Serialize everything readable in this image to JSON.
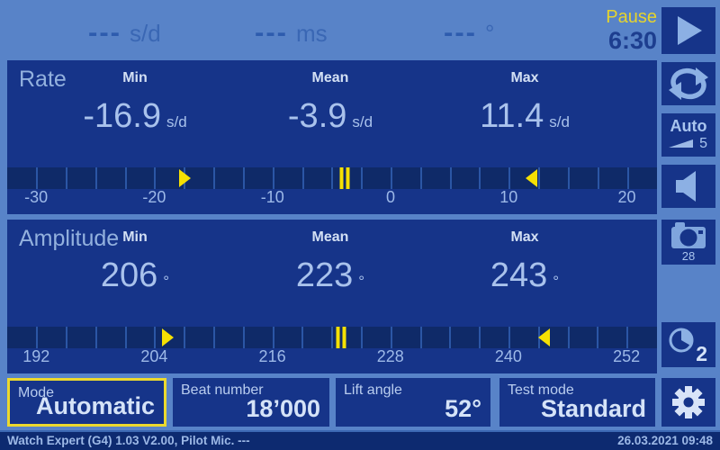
{
  "colors": {
    "background": "#5883c8",
    "panel": "#163489",
    "scale_bg": "#0f2a68",
    "marker_yellow": "#f5e003",
    "pause_yellow": "#e6d42c",
    "selected_border": "#ecd92e",
    "value_text": "#a9c2ec",
    "statusbar_bg": "#0d2a70"
  },
  "top_bar": {
    "readings": [
      {
        "value": "---",
        "unit": "s/d"
      },
      {
        "value": "---",
        "unit": "ms"
      },
      {
        "value": "---",
        "unit": "°"
      }
    ],
    "state_label": "Pause",
    "countdown": "6:30"
  },
  "panels": [
    {
      "title": "Rate",
      "columns": [
        {
          "label": "Min",
          "value": "-16.9",
          "unit": "s/d"
        },
        {
          "label": "Mean",
          "value": "-3.9",
          "unit": "s/d"
        },
        {
          "label": "Max",
          "value": "11.4",
          "unit": "s/d"
        }
      ],
      "scale": {
        "edge_min": -32.45,
        "edge_max": 22.55,
        "ticks": [
          -30,
          -20,
          -10,
          0,
          10,
          20
        ],
        "divider_step": 2.5,
        "marker_min": -16.9,
        "marker_mean": -3.9,
        "marker_max": 11.4
      }
    },
    {
      "title": "Amplitude",
      "columns": [
        {
          "label": "Min",
          "value": "206",
          "unit": "°"
        },
        {
          "label": "Mean",
          "value": "223",
          "unit": "°"
        },
        {
          "label": "Max",
          "value": "243",
          "unit": "°"
        }
      ],
      "scale": {
        "edge_min": 189.05,
        "edge_max": 255.1,
        "ticks": [
          192,
          204,
          216,
          228,
          240,
          252
        ],
        "divider_step": 3,
        "marker_min": 206,
        "marker_mean": 223,
        "marker_max": 243
      }
    }
  ],
  "sidebar": {
    "auto_label": "Auto",
    "auto_count": "5",
    "camera_count": "28",
    "timer_count": "2"
  },
  "settings_row": [
    {
      "label": "Mode",
      "value": "Automatic",
      "selected": true
    },
    {
      "label": "Beat number",
      "value": "18’000"
    },
    {
      "label": "Lift angle",
      "value": "52°"
    },
    {
      "label": "Test mode",
      "value": "Standard"
    }
  ],
  "status_bar": {
    "left": "Watch Expert (G4) 1.03 V2.00, Pilot Mic. ---",
    "right": "26.03.2021 09:48"
  }
}
